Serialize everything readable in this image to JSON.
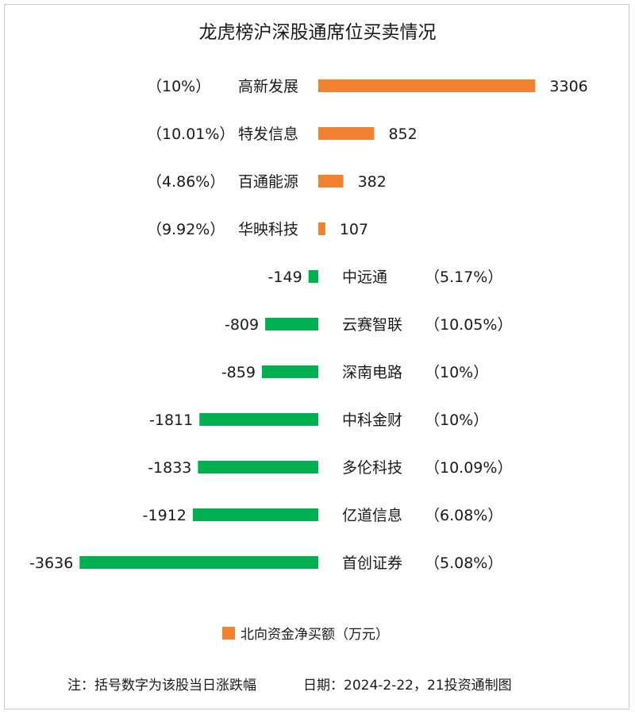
{
  "chart_data": {
    "type": "bar",
    "orientation": "horizontal",
    "title": "龙虎榜沪深股通席位买卖情况",
    "categories": [
      "高新发展",
      "特发信息",
      "百通能源",
      "华映科技",
      "中远通",
      "云赛智联",
      "深南电路",
      "中科金财",
      "多伦科技",
      "亿道信息",
      "首创证券"
    ],
    "changes": [
      "（10%）",
      "（10.01%）",
      "（4.86%）",
      "（9.92%）",
      "（5.17%）",
      "（10.05%）",
      "（10%）",
      "（10%）",
      "（10.09%）",
      "（6.08%）",
      "（5.08%）"
    ],
    "series": [
      {
        "name": "北向资金净买额（万元）",
        "values": [
          3306,
          852,
          382,
          107,
          -149,
          -809,
          -859,
          -1811,
          -1833,
          -1912,
          -3636
        ],
        "value_labels": [
          "3306",
          "852",
          "382",
          "107",
          "-149",
          "-809",
          "-859",
          "-1811",
          "-1833",
          "-1912",
          "-3636"
        ]
      }
    ],
    "colors": {
      "positive": "#f08232",
      "negative": "#00b050"
    },
    "legend": "bottom",
    "grid": false
  },
  "footer": {
    "note": "注：括号数字为该股当日涨跌幅",
    "source": "日期：2024-2-22，21投资通制图"
  }
}
